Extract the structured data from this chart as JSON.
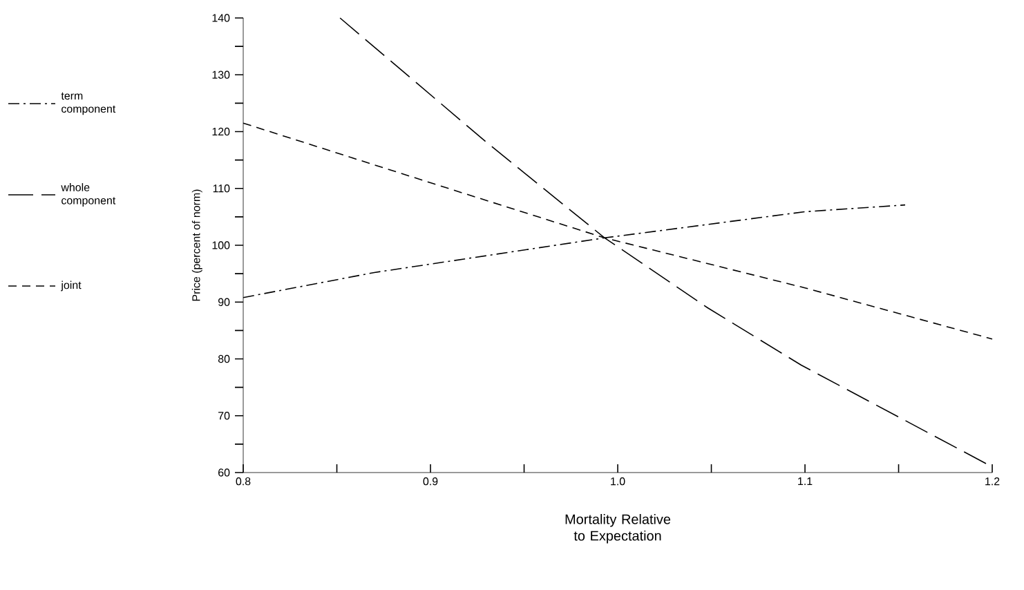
{
  "chart_data": {
    "type": "line",
    "xlabel": "Mortality Relative to Expectation",
    "ylabel": "Price (percent of norm)",
    "xlim": [
      0.8,
      1.2
    ],
    "xticks": [
      0.8,
      {
        "value": 0.85,
        "label": null
      },
      0.9,
      {
        "value": 0.95,
        "label": null
      },
      {
        "value": 1.0,
        "label": "1.0"
      },
      {
        "value": 1.05,
        "label": null
      },
      1.1,
      {
        "value": 1.15,
        "label": null
      },
      1.2
    ],
    "ylim": [
      60,
      140
    ],
    "yticks": [
      60,
      {
        "value": 65,
        "label": null
      },
      70,
      {
        "value": 75,
        "label": null
      },
      80,
      {
        "value": 85,
        "label": null
      },
      90,
      {
        "value": 95,
        "label": null
      },
      100,
      {
        "value": 105,
        "label": null
      },
      110,
      {
        "value": 115,
        "label": null
      },
      120,
      {
        "value": 125,
        "label": null
      },
      130,
      {
        "value": 135,
        "label": null
      },
      140
    ],
    "legend": "left",
    "marker": "none",
    "grid": false,
    "series": [
      {
        "name": "term component",
        "color": "#000000",
        "line_style": "dashdot",
        "x": [
          0.8,
          0.87,
          0.993,
          1.1,
          1.1535
        ],
        "values": [
          90.8,
          95.2,
          101.3,
          105.9,
          107.1
        ]
      },
      {
        "name": "whole component",
        "color": "#000000",
        "line_style": "longdash",
        "x": [
          0.8517,
          0.93,
          0.993,
          1.048,
          1.098,
          1.2
        ],
        "values": [
          140,
          118.1,
          101.3,
          89,
          78.9,
          61
        ]
      },
      {
        "name": "joint",
        "color": "#000000",
        "line_style": "dashed",
        "x": [
          0.8,
          0.9,
          0.993,
          1.1,
          1.2
        ],
        "values": [
          121.5,
          111,
          101.3,
          92.5,
          83.5
        ]
      }
    ]
  }
}
